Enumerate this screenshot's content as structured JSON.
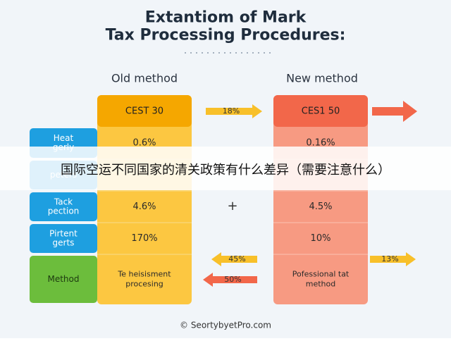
{
  "title": [
    "Extantiom of Mark",
    "Tax Processing Procedures:"
  ],
  "headings": {
    "old": "Old method",
    "new": "New method"
  },
  "headers": {
    "old": "CEST 30",
    "new": "CES1 50"
  },
  "rows": [
    {
      "label": [
        "Heat",
        "gerly"
      ],
      "old": [
        "0.6%"
      ],
      "new": [
        "0.16%"
      ]
    },
    {
      "label": [
        "peters"
      ]
    },
    {
      "label": [
        "Tack",
        "pection"
      ],
      "old": [
        "4.6%"
      ],
      "new": [
        "4.5%"
      ]
    },
    {
      "label": [
        "Pirtent",
        "gerts"
      ],
      "old": [
        "170%"
      ],
      "new": [
        "10%"
      ]
    },
    {
      "label": [
        "Method"
      ],
      "old": [
        "Te heisisment",
        "procesing"
      ],
      "new": [
        "Pofessional tat",
        "method"
      ]
    }
  ],
  "arrows": [
    "18%",
    "45%",
    "50%",
    "13%"
  ],
  "plus": "+",
  "banner": "国际空运不同国家的清关政策有什么差异（需要注意什么）",
  "footer": "© SeortybyetPro.com"
}
